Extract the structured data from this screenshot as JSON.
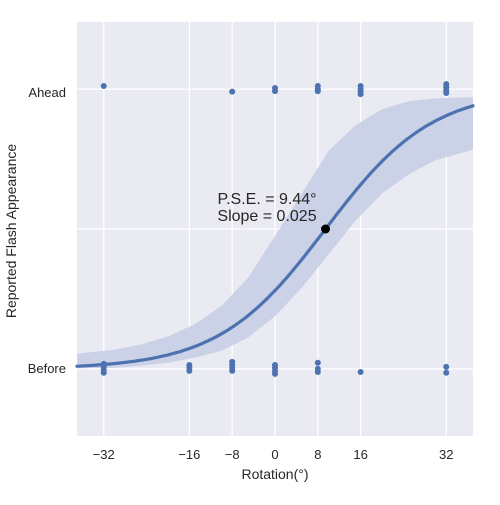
{
  "chart_data": {
    "type": "scatter",
    "title": "",
    "xlabel": "Rotation(°)",
    "ylabel": "Reported Flash Appearance",
    "x_ticks": [
      -32,
      -16,
      -8,
      0,
      8,
      16,
      32
    ],
    "xlim": [
      -37,
      37
    ],
    "y_tick_labels": [
      "Before",
      "Ahead"
    ],
    "y_levels": {
      "Before": 0,
      "Ahead": 1
    },
    "ylim": [
      -0.24,
      1.24
    ],
    "grid": true,
    "background": "#e9eaf2",
    "grid_color": "#ffffff",
    "series": [
      {
        "kind": "points",
        "color": "#4c72b0",
        "points": [
          {
            "x": -32,
            "y": 1.011
          },
          {
            "x": -8,
            "y": 0.991
          },
          {
            "x": 0,
            "y": 1.004
          },
          {
            "x": 0,
            "y": 0.993
          },
          {
            "x": 8,
            "y": 1.011
          },
          {
            "x": 8,
            "y": 1.0
          },
          {
            "x": 8,
            "y": 0.993
          },
          {
            "x": 16,
            "y": 1.011
          },
          {
            "x": 16,
            "y": 1.0
          },
          {
            "x": 16,
            "y": 0.993
          },
          {
            "x": 16,
            "y": 0.982
          },
          {
            "x": 32,
            "y": 1.018
          },
          {
            "x": 32,
            "y": 1.007
          },
          {
            "x": 32,
            "y": 0.996
          },
          {
            "x": 32,
            "y": 0.986
          },
          {
            "x": -32,
            "y": 0.018
          },
          {
            "x": -32,
            "y": 0.007
          },
          {
            "x": -32,
            "y": -0.004
          },
          {
            "x": -32,
            "y": -0.014
          },
          {
            "x": -16,
            "y": 0.014
          },
          {
            "x": -16,
            "y": 0.004
          },
          {
            "x": -16,
            "y": -0.007
          },
          {
            "x": -8,
            "y": 0.025
          },
          {
            "x": -8,
            "y": 0.014
          },
          {
            "x": -8,
            "y": 0.004
          },
          {
            "x": -8,
            "y": -0.007
          },
          {
            "x": 0,
            "y": 0.014
          },
          {
            "x": 0,
            "y": 0.004
          },
          {
            "x": 0,
            "y": -0.007
          },
          {
            "x": 0,
            "y": -0.018
          },
          {
            "x": 8,
            "y": 0.022
          },
          {
            "x": 8,
            "y": 0.0
          },
          {
            "x": 8,
            "y": -0.011
          },
          {
            "x": 16,
            "y": -0.011
          },
          {
            "x": 32,
            "y": 0.007
          },
          {
            "x": 32,
            "y": -0.014
          }
        ]
      },
      {
        "kind": "logistic_fit",
        "color": "#4c72b0",
        "pse": 9.44,
        "slope": 0.025,
        "ci_fill": "#c6cde4",
        "ci_lower": [
          {
            "x": -37,
            "y": 0.002
          },
          {
            "x": -30,
            "y": 0.004
          },
          {
            "x": -25,
            "y": 0.011
          },
          {
            "x": -20,
            "y": 0.022
          },
          {
            "x": -15,
            "y": 0.04
          },
          {
            "x": -10,
            "y": 0.065
          },
          {
            "x": -5,
            "y": 0.112
          },
          {
            "x": 0,
            "y": 0.188
          },
          {
            "x": 5,
            "y": 0.29
          },
          {
            "x": 10,
            "y": 0.409
          },
          {
            "x": 15,
            "y": 0.529
          },
          {
            "x": 20,
            "y": 0.627
          },
          {
            "x": 25,
            "y": 0.696
          },
          {
            "x": 30,
            "y": 0.746
          },
          {
            "x": 37,
            "y": 0.783
          }
        ],
        "ci_upper": [
          {
            "x": -37,
            "y": 0.054
          },
          {
            "x": -30,
            "y": 0.069
          },
          {
            "x": -25,
            "y": 0.087
          },
          {
            "x": -20,
            "y": 0.116
          },
          {
            "x": -15,
            "y": 0.159
          },
          {
            "x": -10,
            "y": 0.225
          },
          {
            "x": -5,
            "y": 0.326
          },
          {
            "x": 0,
            "y": 0.475
          },
          {
            "x": 5,
            "y": 0.627
          },
          {
            "x": 10,
            "y": 0.779
          },
          {
            "x": 15,
            "y": 0.87
          },
          {
            "x": 20,
            "y": 0.928
          },
          {
            "x": 25,
            "y": 0.957
          },
          {
            "x": 30,
            "y": 0.967
          },
          {
            "x": 37,
            "y": 0.971
          }
        ]
      }
    ],
    "pse_marker": {
      "x": 9.44,
      "y": 0.5,
      "color": "#000000"
    },
    "annotations": [
      "P.S.E. = 9.44°",
      "Slope = 0.025"
    ]
  }
}
